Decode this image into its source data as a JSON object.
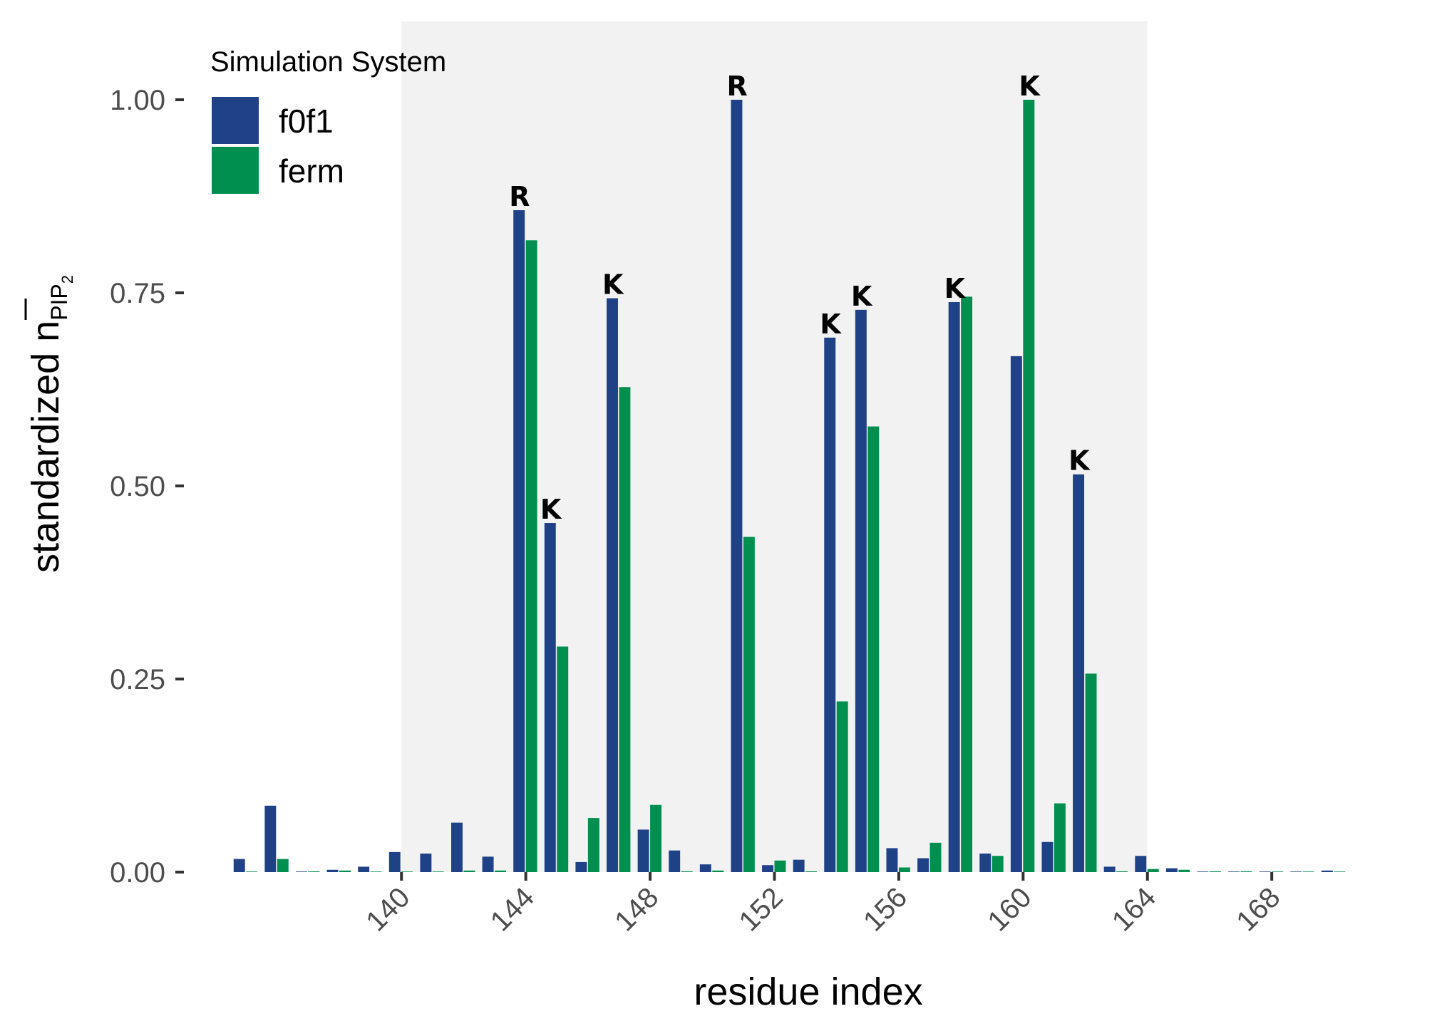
{
  "chart_data": {
    "type": "bar",
    "xlabel": "residue index",
    "ylabel": {
      "main": "standardized n",
      "sub": "PIP",
      "subsub": "2"
    },
    "ylim": [
      0,
      1.0
    ],
    "xlim": [
      133,
      171
    ],
    "y_ticks": [
      "0.00",
      "0.25",
      "0.50",
      "0.75",
      "1.00"
    ],
    "y_tick_values": [
      0,
      0.25,
      0.5,
      0.75,
      1.0
    ],
    "x_ticks": [
      "140",
      "144",
      "148",
      "152",
      "156",
      "160",
      "164",
      "168"
    ],
    "x_tick_values": [
      140,
      144,
      148,
      152,
      156,
      160,
      164,
      168
    ],
    "highlight_region": [
      140,
      164
    ],
    "legend": {
      "title": "Simulation System",
      "placement": "top-left"
    },
    "colors": {
      "f0f1": "#1f4287",
      "ferm": "#008f4f",
      "highlight": "#f2f2f2",
      "tick": "#333333"
    },
    "series": [
      {
        "name": "f0f1",
        "x": [
          135,
          136,
          137,
          138,
          139,
          140,
          141,
          142,
          143,
          144,
          145,
          146,
          147,
          148,
          149,
          150,
          151,
          152,
          153,
          154,
          155,
          156,
          157,
          158,
          159,
          160,
          161,
          162,
          163,
          164,
          165,
          166,
          167,
          168,
          169,
          170
        ],
        "values": [
          0.017,
          0.086,
          0,
          0.003,
          0.007,
          0.026,
          0.024,
          0.064,
          0.02,
          0.857,
          0.452,
          0.013,
          0.743,
          0.055,
          0.028,
          0.01,
          1.0,
          0.009,
          0.016,
          0.692,
          0.728,
          0.031,
          0.018,
          0.738,
          0.024,
          0.668,
          0.039,
          0.515,
          0.007,
          0.021,
          0.005,
          0,
          0,
          0,
          0,
          0.002
        ]
      },
      {
        "name": "ferm",
        "x": [
          135,
          136,
          137,
          138,
          139,
          140,
          141,
          142,
          143,
          144,
          145,
          146,
          147,
          148,
          149,
          150,
          151,
          152,
          153,
          154,
          155,
          156,
          157,
          158,
          159,
          160,
          161,
          162,
          163,
          164,
          165,
          166,
          167,
          168,
          169,
          170
        ],
        "values": [
          0,
          0.017,
          0.001,
          0.002,
          0,
          0,
          0,
          0.002,
          0.002,
          0.818,
          0.292,
          0.07,
          0.628,
          0.087,
          0.001,
          0.002,
          0.434,
          0.015,
          0.001,
          0.221,
          0.577,
          0.006,
          0.038,
          0.745,
          0.021,
          1.0,
          0.089,
          0.257,
          0.001,
          0.004,
          0.003,
          0.001,
          0.001,
          0,
          0,
          0
        ]
      }
    ],
    "annotations": [
      {
        "x": 144,
        "series": "f0f1",
        "text": "R"
      },
      {
        "x": 145,
        "series": "f0f1",
        "text": "K"
      },
      {
        "x": 147,
        "series": "f0f1",
        "text": "K"
      },
      {
        "x": 151,
        "series": "f0f1",
        "text": "R"
      },
      {
        "x": 154,
        "series": "f0f1",
        "text": "K"
      },
      {
        "x": 155,
        "series": "f0f1",
        "text": "K"
      },
      {
        "x": 158,
        "series": "f0f1",
        "text": "K"
      },
      {
        "x": 160,
        "series": "ferm",
        "text": "K"
      },
      {
        "x": 162,
        "series": "f0f1",
        "text": "K"
      }
    ]
  }
}
